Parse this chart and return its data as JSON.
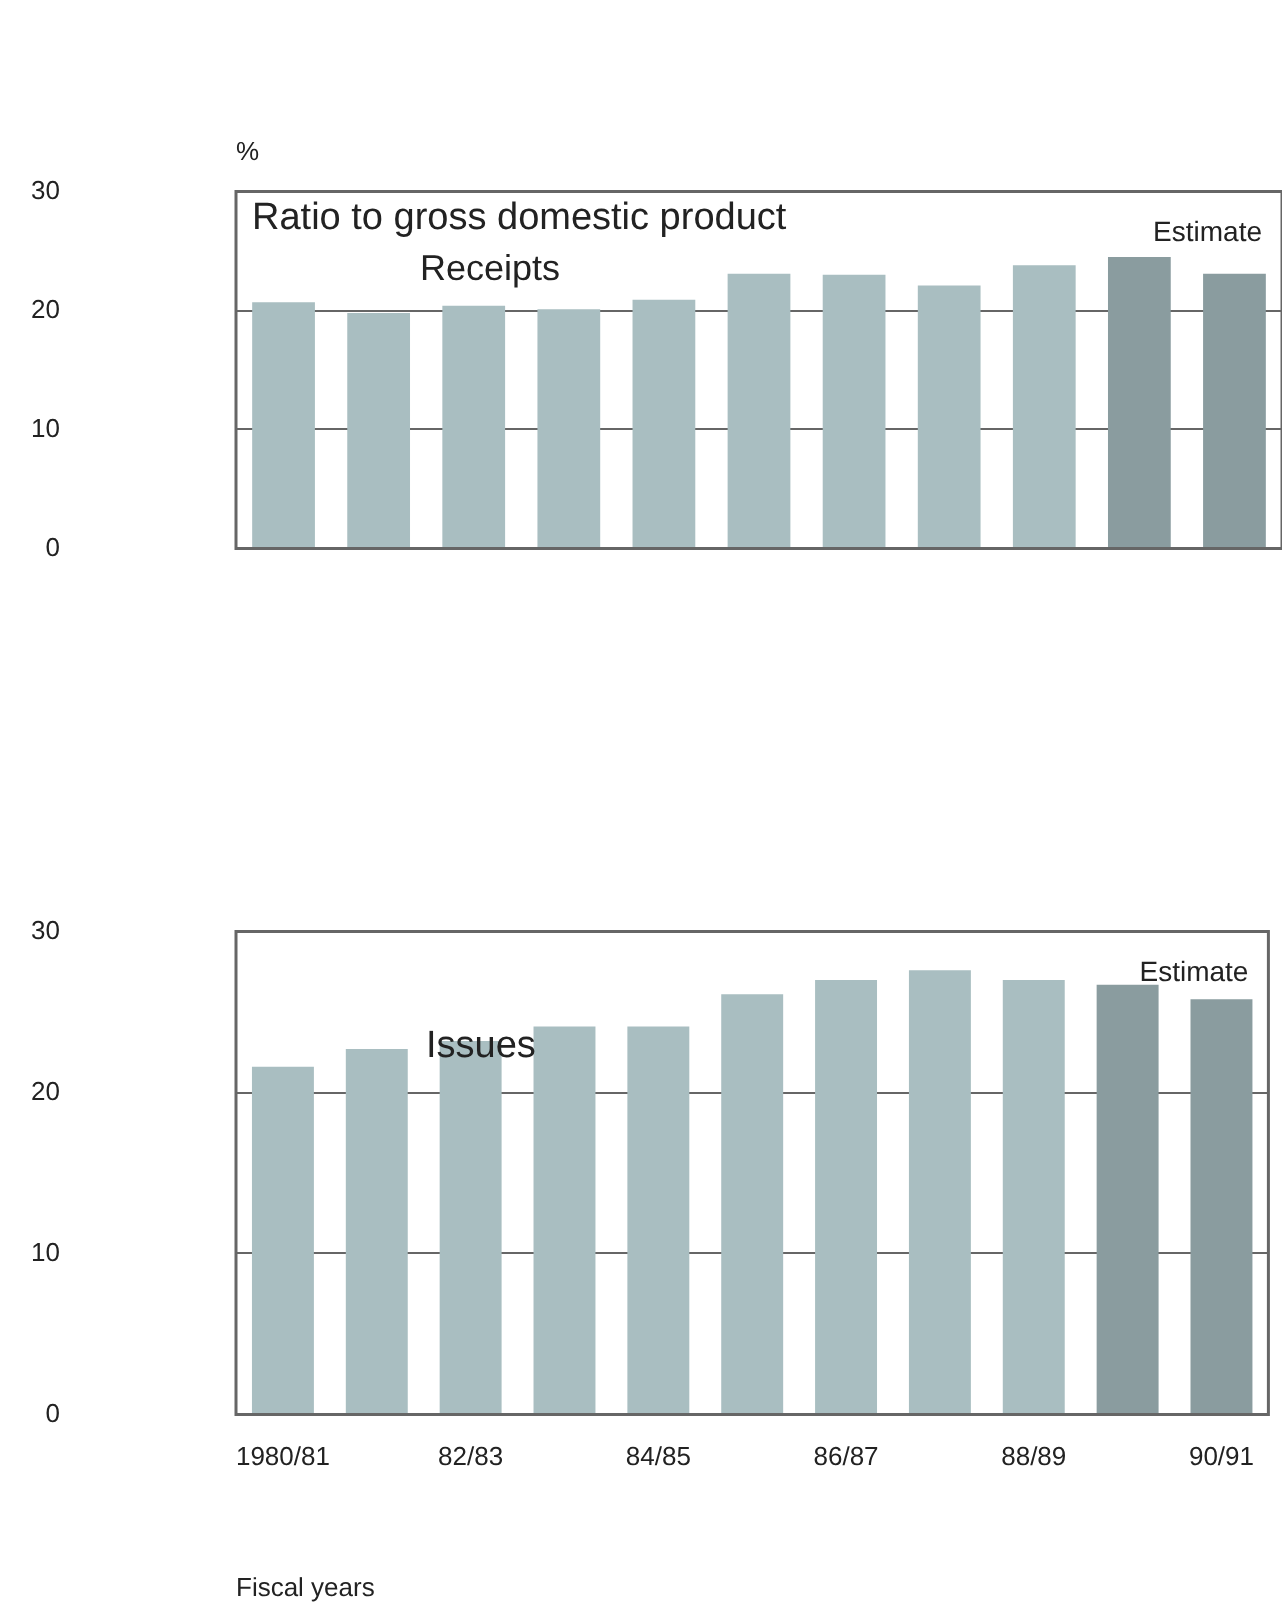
{
  "chart_data": [
    {
      "type": "bar",
      "title": "Ratio to gross domestic product",
      "subtitle": "Receipts",
      "ylabel": "%",
      "categories": [
        null,
        null,
        null,
        null,
        null,
        null,
        null,
        null,
        null,
        null,
        null
      ],
      "values": [
        20.7,
        19.8,
        20.4,
        20.1,
        20.9,
        23.1,
        23.0,
        22.1,
        23.8,
        24.5,
        23.1
      ],
      "colors": [
        "#a9bec1",
        "#a9bec1",
        "#a9bec1",
        "#a9bec1",
        "#a9bec1",
        "#a9bec1",
        "#a9bec1",
        "#a9bec1",
        "#a9bec1",
        "#8a9c9f",
        "#8a9c9f"
      ],
      "ylim": [
        0,
        30
      ],
      "yticks": [
        0,
        10,
        20,
        30
      ],
      "grid": "y",
      "tick_labels": "y",
      "annotations": [
        "Estimate"
      ]
    },
    {
      "type": "bar",
      "title": "Issues",
      "xlabel": "Fiscal years",
      "categories": [
        "1980/81",
        null,
        "82/83",
        null,
        "84/85",
        null,
        "86/87",
        null,
        "88/89",
        null,
        "90/91"
      ],
      "values": [
        21.6,
        22.7,
        23.2,
        24.1,
        24.1,
        26.1,
        27.0,
        27.6,
        27.0,
        26.7,
        25.8
      ],
      "colors": [
        "#a9bec1",
        "#a9bec1",
        "#a9bec1",
        "#a9bec1",
        "#a9bec1",
        "#a9bec1",
        "#a9bec1",
        "#a9bec1",
        "#a9bec1",
        "#8a9c9f",
        "#8a9c9f"
      ],
      "ylim": [
        0,
        30
      ],
      "yticks": [
        0,
        10,
        20,
        30
      ],
      "grid": "y",
      "annotations": [
        "Estimate"
      ]
    }
  ]
}
